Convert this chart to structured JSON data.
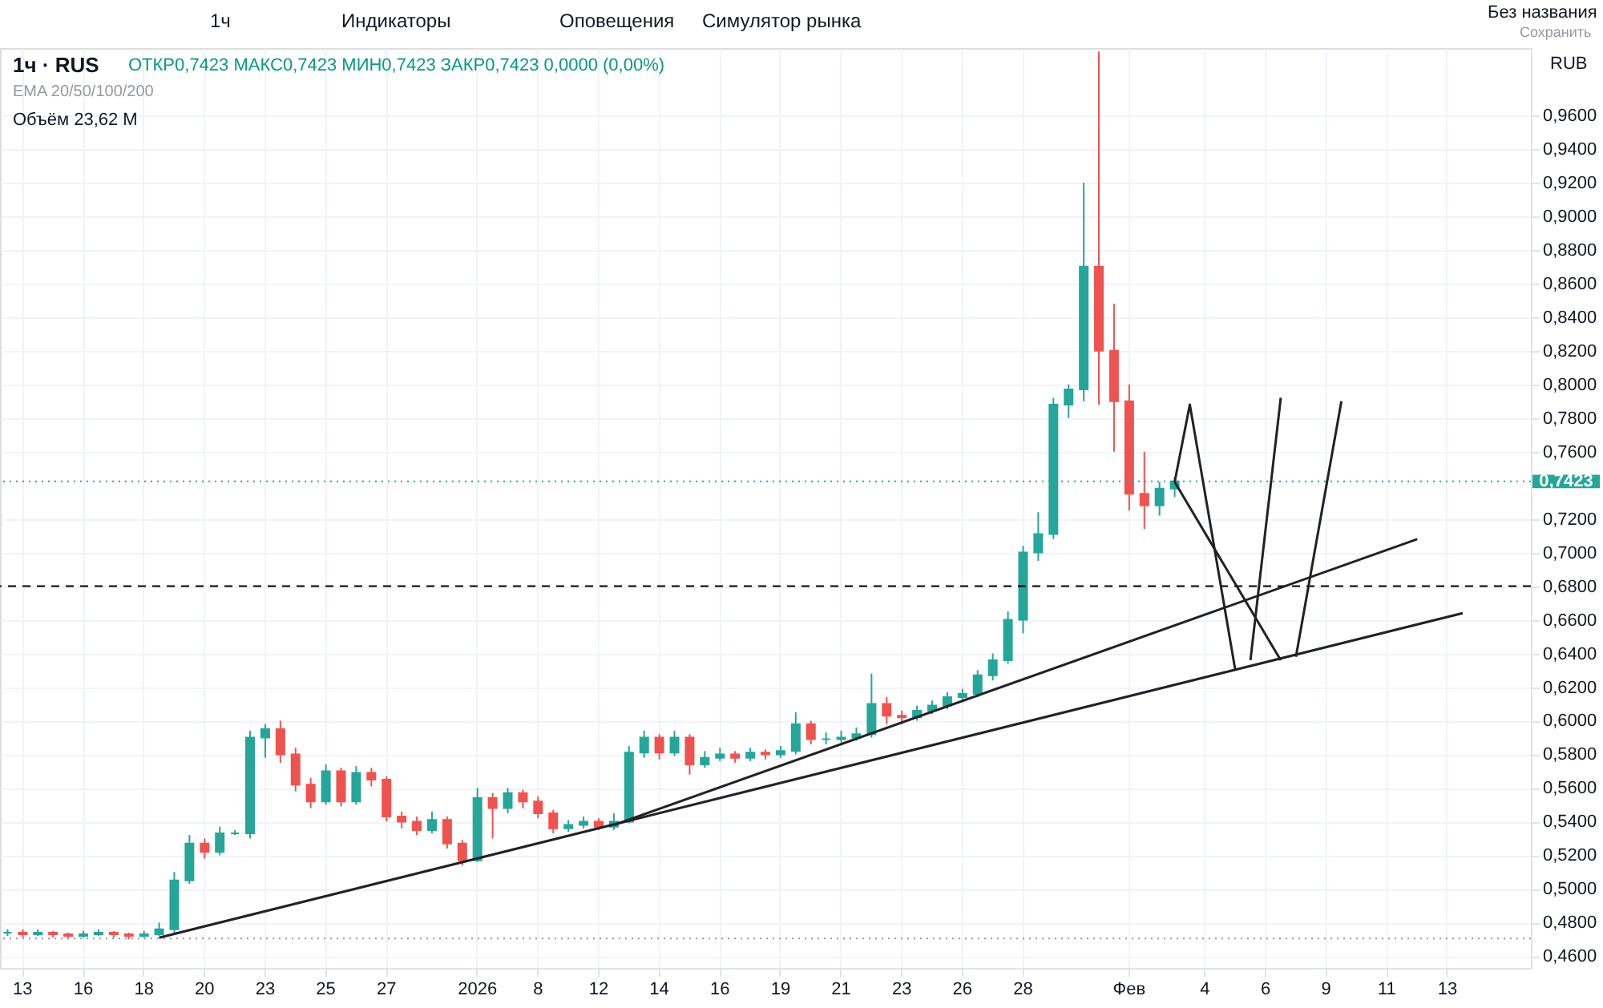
{
  "chart_data": {
    "type": "candlestick",
    "title": "1ч · RUS",
    "subtitle": "ОТКР0,7423 МАКС0,7423 МИН0,7423 ЗАКР0,7423 0,0000 (0,00%)",
    "ylabel": "RUB",
    "annotations": [
      "EMA 20/50/100/200",
      "Объём 23,62 M",
      "1ч",
      "Индикаторы",
      "Оповещения",
      "Симулятор рынка",
      "Без названия",
      "Сохранить"
    ],
    "categories": [
      null,
      "13",
      null,
      null,
      null,
      "16",
      null,
      null,
      null,
      "18",
      null,
      null,
      null,
      "20",
      null,
      null,
      null,
      "23",
      null,
      null,
      null,
      "25",
      null,
      null,
      null,
      "27",
      null,
      null,
      null,
      null,
      null,
      "2026",
      null,
      null,
      null,
      "8",
      null,
      null,
      null,
      "12",
      null,
      null,
      null,
      "14",
      null,
      null,
      null,
      "16",
      null,
      null,
      null,
      "19",
      null,
      null,
      null,
      "21",
      null,
      null,
      null,
      "23",
      null,
      null,
      null,
      "26",
      null,
      null,
      null,
      "28",
      null,
      null,
      null,
      null,
      null,
      null,
      "Фев",
      null,
      null,
      null,
      null,
      "4",
      null,
      null,
      null,
      "6",
      null,
      null,
      null,
      "9",
      null,
      null,
      null,
      "11",
      null,
      null,
      null,
      "13",
      null,
      null,
      null,
      null,
      null
    ],
    "ohlc": [
      [
        0.474,
        0.476,
        0.472,
        0.474
      ],
      [
        0.474,
        0.476,
        0.471,
        0.473
      ],
      [
        0.473,
        0.476,
        0.472,
        0.474
      ],
      [
        0.474,
        0.475,
        0.471,
        0.473
      ],
      [
        0.473,
        0.474,
        0.47,
        0.472
      ],
      [
        0.472,
        0.475,
        0.471,
        0.473
      ],
      [
        0.473,
        0.476,
        0.472,
        0.474
      ],
      [
        0.474,
        0.475,
        0.471,
        0.473
      ],
      [
        0.473,
        0.474,
        0.47,
        0.472
      ],
      [
        0.472,
        0.475,
        0.471,
        0.473
      ],
      [
        0.473,
        0.48,
        0.472,
        0.476
      ],
      [
        0.476,
        0.51,
        0.474,
        0.505
      ],
      [
        0.505,
        0.532,
        0.503,
        0.527
      ],
      [
        0.527,
        0.53,
        0.518,
        0.522
      ],
      [
        0.522,
        0.537,
        0.52,
        0.533
      ],
      [
        0.533,
        0.535,
        0.532,
        0.533
      ],
      [
        0.533,
        0.594,
        0.53,
        0.59
      ],
      [
        0.59,
        0.598,
        0.578,
        0.595
      ],
      [
        0.595,
        0.6,
        0.575,
        0.58
      ],
      [
        0.58,
        0.584,
        0.558,
        0.562
      ],
      [
        0.562,
        0.566,
        0.548,
        0.552
      ],
      [
        0.552,
        0.574,
        0.55,
        0.57
      ],
      [
        0.57,
        0.572,
        0.549,
        0.552
      ],
      [
        0.552,
        0.573,
        0.55,
        0.569
      ],
      [
        0.569,
        0.572,
        0.561,
        0.565
      ],
      [
        0.565,
        0.567,
        0.54,
        0.543
      ],
      [
        0.543,
        0.546,
        0.536,
        0.54
      ],
      [
        0.54,
        0.543,
        0.532,
        0.535
      ],
      [
        0.535,
        0.546,
        0.533,
        0.541
      ],
      [
        0.541,
        0.543,
        0.524,
        0.527
      ],
      [
        0.527,
        0.529,
        0.514,
        0.517
      ],
      [
        0.517,
        0.56,
        0.516,
        0.554
      ],
      [
        0.554,
        0.557,
        0.53,
        0.548
      ],
      [
        0.548,
        0.56,
        0.545,
        0.557
      ],
      [
        0.557,
        0.559,
        0.548,
        0.552
      ],
      [
        0.552,
        0.555,
        0.542,
        0.545
      ],
      [
        0.545,
        0.547,
        0.533,
        0.536
      ],
      [
        0.536,
        0.541,
        0.534,
        0.538
      ],
      [
        0.538,
        0.543,
        0.536,
        0.54
      ],
      [
        0.54,
        0.542,
        0.535,
        0.537
      ],
      [
        0.537,
        0.545,
        0.535,
        0.54
      ],
      [
        0.54,
        0.585,
        0.539,
        0.581
      ],
      [
        0.581,
        0.594,
        0.578,
        0.59
      ],
      [
        0.59,
        0.592,
        0.577,
        0.581
      ],
      [
        0.581,
        0.594,
        0.579,
        0.59
      ],
      [
        0.59,
        0.592,
        0.568,
        0.574
      ],
      [
        0.574,
        0.582,
        0.572,
        0.578
      ],
      [
        0.578,
        0.584,
        0.576,
        0.58
      ],
      [
        0.58,
        0.582,
        0.575,
        0.578
      ],
      [
        0.578,
        0.584,
        0.576,
        0.581
      ],
      [
        0.581,
        0.583,
        0.577,
        0.58
      ],
      [
        0.58,
        0.585,
        0.578,
        0.582
      ],
      [
        0.582,
        0.605,
        0.58,
        0.598
      ],
      [
        0.598,
        0.6,
        0.586,
        0.589
      ],
      [
        0.589,
        0.593,
        0.586,
        0.589
      ],
      [
        0.589,
        0.594,
        0.587,
        0.59
      ],
      [
        0.59,
        0.596,
        0.588,
        0.592
      ],
      [
        0.592,
        0.628,
        0.59,
        0.61
      ],
      [
        0.61,
        0.614,
        0.598,
        0.603
      ],
      [
        0.603,
        0.606,
        0.598,
        0.602
      ],
      [
        0.602,
        0.609,
        0.6,
        0.606
      ],
      [
        0.606,
        0.612,
        0.604,
        0.609
      ],
      [
        0.609,
        0.617,
        0.607,
        0.614
      ],
      [
        0.614,
        0.619,
        0.611,
        0.616
      ],
      [
        0.616,
        0.63,
        0.614,
        0.627
      ],
      [
        0.627,
        0.64,
        0.624,
        0.636
      ],
      [
        0.636,
        0.665,
        0.634,
        0.66
      ],
      [
        0.66,
        0.704,
        0.652,
        0.7
      ],
      [
        0.7,
        0.724,
        0.695,
        0.711
      ],
      [
        0.711,
        0.792,
        0.708,
        0.788
      ],
      [
        0.788,
        0.8,
        0.78,
        0.797
      ],
      [
        0.797,
        0.92,
        0.79,
        0.87
      ],
      [
        0.87,
        0.998,
        0.788,
        0.82
      ],
      [
        0.82,
        0.848,
        0.76,
        0.79
      ],
      [
        0.79,
        0.8,
        0.725,
        0.735
      ],
      [
        0.735,
        0.76,
        0.714,
        0.728
      ],
      [
        0.728,
        0.742,
        0.722,
        0.738
      ],
      [
        0.738,
        0.745,
        0.733,
        0.7423
      ],
      null,
      null,
      null,
      null,
      null,
      null,
      null,
      null,
      null,
      null,
      null,
      null,
      null,
      null,
      null,
      null,
      null,
      null,
      null,
      null,
      null,
      null,
      null
    ],
    "colors": [
      "#26a69a",
      "#ef5350",
      "#26a69a",
      "#ef5350",
      "#ef5350",
      "#26a69a",
      "#26a69a",
      "#ef5350",
      "#ef5350",
      "#26a69a",
      "#26a69a",
      "#26a69a",
      "#26a69a",
      "#ef5350",
      "#26a69a",
      "#26a69a",
      "#26a69a",
      "#26a69a",
      "#ef5350",
      "#ef5350",
      "#ef5350",
      "#26a69a",
      "#ef5350",
      "#26a69a",
      "#ef5350",
      "#ef5350",
      "#ef5350",
      "#ef5350",
      "#26a69a",
      "#ef5350",
      "#ef5350",
      "#26a69a",
      "#ef5350",
      "#26a69a",
      "#ef5350",
      "#ef5350",
      "#ef5350",
      "#26a69a",
      "#26a69a",
      "#ef5350",
      "#26a69a",
      "#26a69a",
      "#26a69a",
      "#ef5350",
      "#26a69a",
      "#ef5350",
      "#26a69a",
      "#26a69a",
      "#ef5350",
      "#26a69a",
      "#ef5350",
      "#26a69a",
      "#26a69a",
      "#ef5350",
      "#26a69a",
      "#26a69a",
      "#26a69a",
      "#26a69a",
      "#ef5350",
      "#ef5350",
      "#26a69a",
      "#26a69a",
      "#26a69a",
      "#26a69a",
      "#26a69a",
      "#26a69a",
      "#26a69a",
      "#26a69a",
      "#26a69a",
      "#26a69a",
      "#26a69a",
      "#26a69a",
      "#ef5350",
      "#ef5350",
      "#ef5350",
      "#ef5350",
      "#26a69a",
      "#26a69a",
      null,
      null,
      null,
      null,
      null,
      null,
      null,
      null,
      null,
      null,
      null,
      null,
      null,
      null,
      null,
      null,
      null,
      null,
      null,
      null,
      null,
      null,
      null
    ],
    "series": [
      {
        "type": "line",
        "color": "#222222",
        "values": [
          null,
          null,
          null,
          null,
          null,
          null,
          null,
          null,
          null,
          null,
          0.471,
          null,
          null,
          null,
          null,
          null,
          null,
          null,
          null,
          null,
          null,
          null,
          null,
          null,
          null,
          null,
          null,
          null,
          null,
          null,
          null,
          null,
          null,
          null,
          null,
          null,
          null,
          null,
          null,
          null,
          null,
          null,
          null,
          null,
          null,
          null,
          null,
          null,
          null,
          null,
          null,
          null,
          null,
          null,
          null,
          null,
          null,
          null,
          null,
          null,
          null,
          null,
          null,
          null,
          null,
          null,
          null,
          null,
          null,
          null,
          null,
          null,
          null,
          null,
          null,
          null,
          null,
          null,
          null,
          null,
          null,
          null,
          null,
          null,
          null,
          null,
          null,
          null,
          null,
          null,
          null,
          null,
          null,
          null,
          null,
          null,
          0.664,
          null,
          null,
          null,
          null
        ]
      },
      {
        "type": "line",
        "color": "#222222",
        "values": [
          null,
          null,
          null,
          null,
          null,
          null,
          null,
          null,
          null,
          null,
          null,
          null,
          null,
          null,
          null,
          null,
          null,
          null,
          null,
          null,
          null,
          null,
          null,
          null,
          null,
          null,
          null,
          null,
          null,
          null,
          null,
          null,
          null,
          null,
          null,
          null,
          null,
          null,
          null,
          null,
          0.538,
          null,
          null,
          null,
          null,
          null,
          null,
          null,
          null,
          null,
          null,
          null,
          null,
          null,
          null,
          null,
          null,
          null,
          null,
          null,
          null,
          null,
          null,
          null,
          null,
          null,
          null,
          null,
          null,
          null,
          null,
          null,
          null,
          null,
          null,
          null,
          null,
          null,
          null,
          null,
          null,
          null,
          null,
          null,
          null,
          null,
          null,
          null,
          null,
          null,
          null,
          null,
          null,
          0.708,
          null,
          null,
          null,
          null,
          null,
          null,
          null
        ]
      },
      {
        "type": "line",
        "color": "#222222",
        "values": [
          null,
          null,
          null,
          null,
          null,
          null,
          null,
          null,
          null,
          null,
          null,
          null,
          null,
          null,
          null,
          null,
          null,
          null,
          null,
          null,
          null,
          null,
          null,
          null,
          null,
          null,
          null,
          null,
          null,
          null,
          null,
          null,
          null,
          null,
          null,
          null,
          null,
          null,
          null,
          null,
          null,
          null,
          null,
          null,
          null,
          null,
          null,
          null,
          null,
          null,
          null,
          null,
          null,
          null,
          null,
          null,
          null,
          null,
          null,
          null,
          null,
          null,
          null,
          null,
          null,
          null,
          null,
          null,
          null,
          null,
          null,
          null,
          null,
          null,
          null,
          null,
          null,
          0.742,
          0.788,
          null,
          null,
          0.63,
          null,
          null,
          null,
          null,
          null,
          null,
          null,
          null,
          null,
          null,
          null,
          null,
          null,
          null,
          null,
          null,
          null,
          null,
          null
        ]
      },
      {
        "type": "line",
        "color": "#222222",
        "values": [
          null,
          null,
          null,
          null,
          null,
          null,
          null,
          null,
          null,
          null,
          null,
          null,
          null,
          null,
          null,
          null,
          null,
          null,
          null,
          null,
          null,
          null,
          null,
          null,
          null,
          null,
          null,
          null,
          null,
          null,
          null,
          null,
          null,
          null,
          null,
          null,
          null,
          null,
          null,
          null,
          null,
          null,
          null,
          null,
          null,
          null,
          null,
          null,
          null,
          null,
          null,
          null,
          null,
          null,
          null,
          null,
          null,
          null,
          null,
          null,
          null,
          null,
          null,
          null,
          null,
          null,
          null,
          null,
          null,
          null,
          null,
          null,
          null,
          null,
          null,
          null,
          null,
          0.742,
          null,
          null,
          null,
          null,
          null,
          null,
          0.636,
          null,
          null,
          null,
          null,
          null,
          null,
          null,
          null,
          null,
          null,
          null,
          null,
          null,
          null,
          null,
          null
        ]
      },
      {
        "type": "line",
        "color": "#222222",
        "values": [
          null,
          null,
          null,
          null,
          null,
          null,
          null,
          null,
          null,
          null,
          null,
          null,
          null,
          null,
          null,
          null,
          null,
          null,
          null,
          null,
          null,
          null,
          null,
          null,
          null,
          null,
          null,
          null,
          null,
          null,
          null,
          null,
          null,
          null,
          null,
          null,
          null,
          null,
          null,
          null,
          null,
          null,
          null,
          null,
          null,
          null,
          null,
          null,
          null,
          null,
          null,
          null,
          null,
          null,
          null,
          null,
          null,
          null,
          null,
          null,
          null,
          null,
          null,
          null,
          null,
          null,
          null,
          null,
          null,
          null,
          null,
          null,
          null,
          null,
          null,
          null,
          null,
          null,
          null,
          null,
          null,
          null,
          0.636,
          null,
          0.792,
          null,
          null,
          null,
          null,
          null,
          null,
          null,
          null,
          null,
          null,
          null,
          null,
          null,
          null,
          null,
          null
        ]
      },
      {
        "type": "line",
        "color": "#222222",
        "values": [
          null,
          null,
          null,
          null,
          null,
          null,
          null,
          null,
          null,
          null,
          null,
          null,
          null,
          null,
          null,
          null,
          null,
          null,
          null,
          null,
          null,
          null,
          null,
          null,
          null,
          null,
          null,
          null,
          null,
          null,
          null,
          null,
          null,
          null,
          null,
          null,
          null,
          null,
          null,
          null,
          null,
          null,
          null,
          null,
          null,
          null,
          null,
          null,
          null,
          null,
          null,
          null,
          null,
          null,
          null,
          null,
          null,
          null,
          null,
          null,
          null,
          null,
          null,
          null,
          null,
          null,
          null,
          null,
          null,
          null,
          null,
          null,
          null,
          null,
          null,
          null,
          null,
          null,
          null,
          null,
          null,
          null,
          null,
          null,
          null,
          0.638,
          null,
          null,
          0.79,
          null,
          null,
          null,
          null,
          null,
          null,
          null,
          null,
          null,
          null,
          null,
          null
        ]
      }
    ],
    "ref_lines": [
      {
        "axis": "y",
        "value": 0.68,
        "color": "#000000",
        "line_style": "dashed"
      },
      {
        "axis": "y",
        "value": 0.7423,
        "label": "0,7423",
        "color": "#26a69a",
        "line_style": "dotted"
      },
      {
        "axis": "y",
        "value": 0.4705,
        "color": "#9598a1",
        "line_style": "dotted"
      }
    ],
    "ylim": [
      0.453,
      1.0
    ],
    "yticks": [
      {
        "value": 0.46,
        "label": "0,4600"
      },
      {
        "value": 0.48,
        "label": "0,4800"
      },
      {
        "value": 0.5,
        "label": "0,5000"
      },
      {
        "value": 0.52,
        "label": "0,5200"
      },
      {
        "value": 0.54,
        "label": "0,5400"
      },
      {
        "value": 0.56,
        "label": "0,5600"
      },
      {
        "value": 0.58,
        "label": "0,5800"
      },
      {
        "value": 0.6,
        "label": "0,6000"
      },
      {
        "value": 0.62,
        "label": "0,6200"
      },
      {
        "value": 0.64,
        "label": "0,6400"
      },
      {
        "value": 0.66,
        "label": "0,6600"
      },
      {
        "value": 0.68,
        "label": "0,6800"
      },
      {
        "value": 0.7,
        "label": "0,7000"
      },
      {
        "value": 0.72,
        "label": "0,7200"
      },
      {
        "value": 0.76,
        "label": "0,7600"
      },
      {
        "value": 0.78,
        "label": "0,7800"
      },
      {
        "value": 0.8,
        "label": "0,8000"
      },
      {
        "value": 0.82,
        "label": "0,8200"
      },
      {
        "value": 0.84,
        "label": "0,8400"
      },
      {
        "value": 0.86,
        "label": "0,8600"
      },
      {
        "value": 0.88,
        "label": "0,8800"
      },
      {
        "value": 0.9,
        "label": "0,9000"
      },
      {
        "value": 0.92,
        "label": "0,9200"
      },
      {
        "value": 0.94,
        "label": "0,9400"
      },
      {
        "value": 0.96,
        "label": "0,9600"
      }
    ],
    "grid": true
  }
}
